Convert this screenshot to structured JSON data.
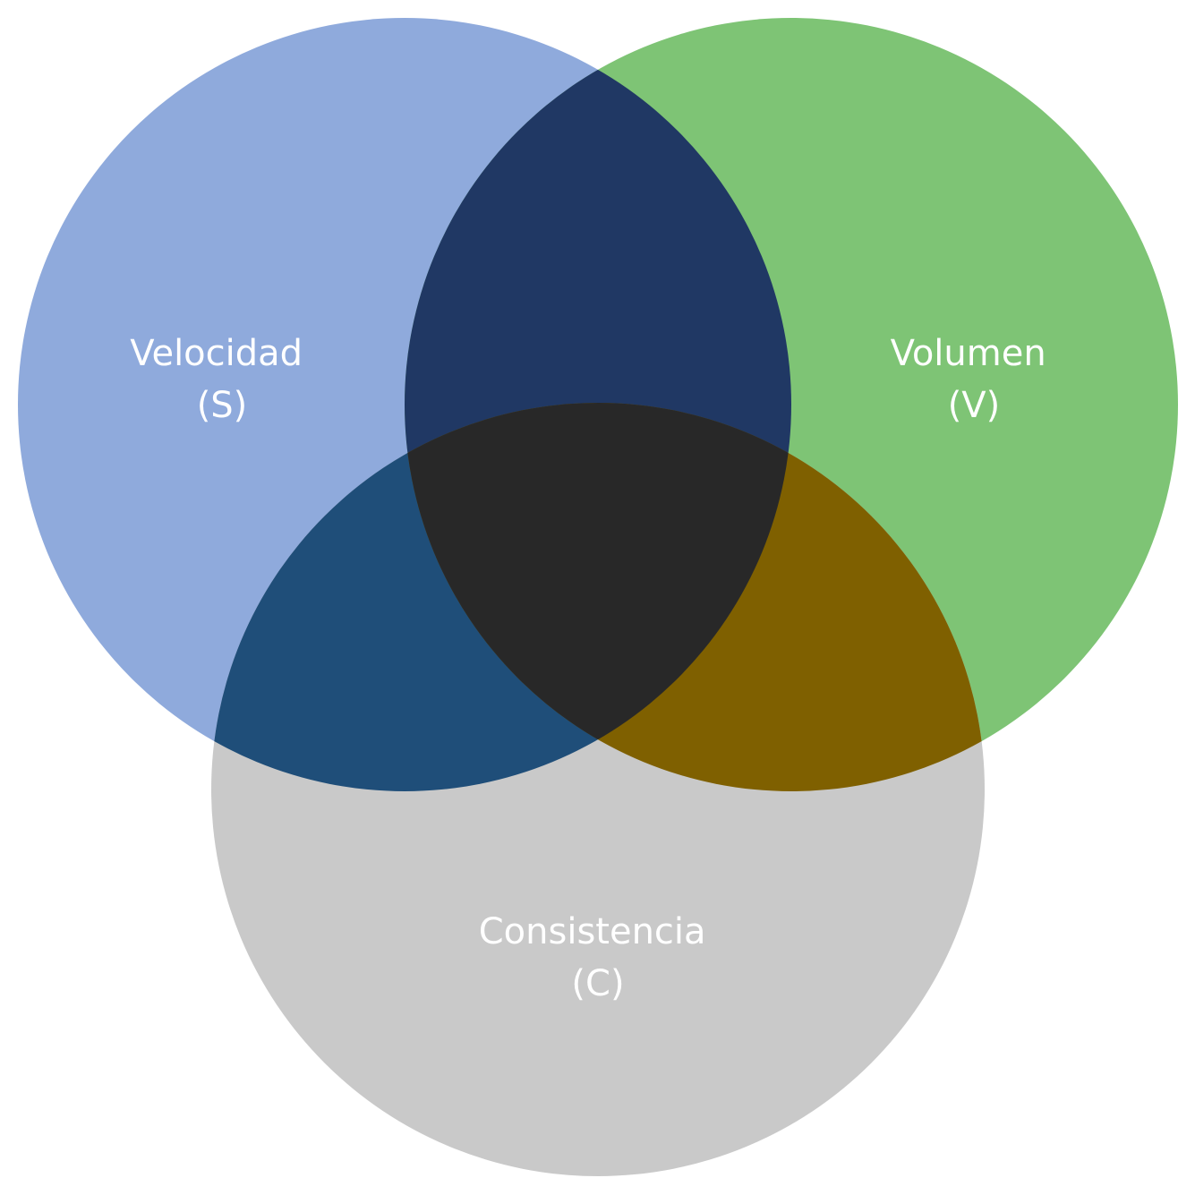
{
  "sets": [
    {
      "id": "velocidad",
      "name": "Velocidad",
      "abbr": "(S)",
      "color": "#8FAADC"
    },
    {
      "id": "volumen",
      "name": "Volumen",
      "abbr": "(V)",
      "color": "#7EC475"
    },
    {
      "id": "consistencia",
      "name": "Consistencia",
      "abbr": "(C)",
      "color": "#C9C9C9"
    }
  ],
  "overlaps": {
    "velocidad_volumen": "#203864",
    "velocidad_consistencia": "#1F4E79",
    "volumen_consistencia": "#7F6000",
    "all_three": "#282828"
  }
}
